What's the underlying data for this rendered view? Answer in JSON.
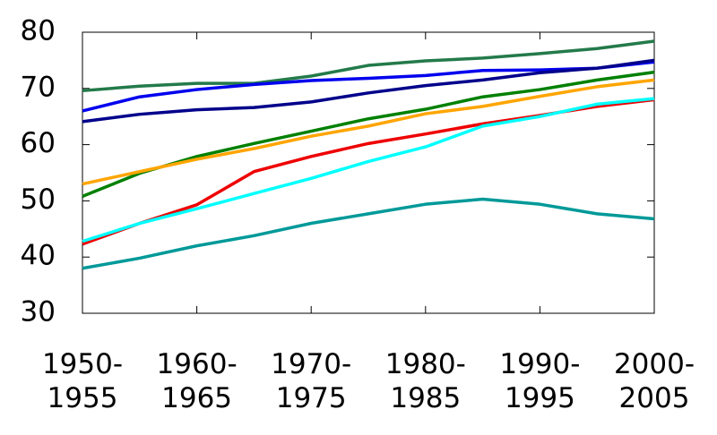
{
  "chart_data": {
    "type": "line",
    "categories": [
      "1950-\n1955",
      null,
      "1960-\n1965",
      null,
      "1970-\n1975",
      null,
      "1980-\n1985",
      null,
      "1990-\n1995",
      null,
      "2000-\n2005"
    ],
    "series": [
      {
        "color": "#237a4a",
        "values": [
          69.6,
          70.4,
          70.9,
          70.9,
          72.2,
          74.1,
          74.9,
          75.4,
          76.2,
          77.1,
          78.4
        ]
      },
      {
        "color": "#0000ee",
        "values": [
          66,
          68.5,
          69.8,
          70.7,
          71.4,
          71.8,
          72.3,
          73.2,
          73.3,
          73.6,
          74.7
        ]
      },
      {
        "color": "#00008b",
        "values": [
          64.1,
          65.4,
          66.2,
          66.6,
          67.6,
          69.2,
          70.5,
          71.5,
          72.8,
          73.6,
          75.0
        ]
      },
      {
        "color": "#008000",
        "values": [
          50.8,
          54.9,
          57.9,
          60.2,
          62.4,
          64.6,
          66.3,
          68.5,
          69.8,
          71.5,
          72.9
        ]
      },
      {
        "color": "#ffa500",
        "values": [
          53,
          55.2,
          57.4,
          59.3,
          61.5,
          63.3,
          65.5,
          66.8,
          68.6,
          70.3,
          71.5
        ]
      },
      {
        "color": "#ee0000",
        "values": [
          42.3,
          46,
          49.3,
          55.2,
          57.9,
          60.2,
          61.9,
          63.7,
          65.2,
          66.8,
          68
        ]
      },
      {
        "color": "#00ffff",
        "values": [
          42.8,
          46,
          48.6,
          51.3,
          54,
          57,
          59.6,
          63.3,
          65,
          67.2,
          68.2
        ]
      },
      {
        "color": "#009999",
        "values": [
          38,
          39.8,
          42,
          43.8,
          46,
          47.7,
          49.4,
          50.3,
          49.4,
          47.7,
          46.8
        ]
      }
    ],
    "ylim": [
      30,
      80
    ],
    "yticks": [
      30,
      40,
      50,
      60,
      70,
      80
    ]
  }
}
